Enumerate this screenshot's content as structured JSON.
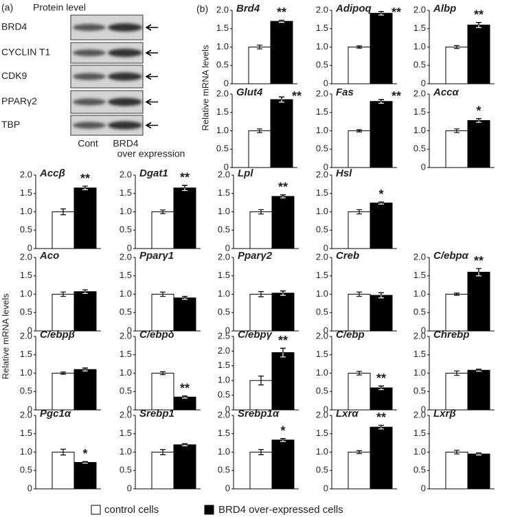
{
  "panel_a": {
    "label": "(a)",
    "title": "Protein level",
    "rows": [
      "BRD4",
      "CYCLIN T1",
      "CDK9",
      "PPARγ2",
      "TBP"
    ],
    "lanes": [
      [
        "Cont"
      ],
      [
        "BRD4",
        "over expression"
      ]
    ]
  },
  "panel_b": {
    "label": "(b)",
    "y_label": "Relative mRNA levels"
  },
  "legend": {
    "items": [
      {
        "name": "control cells",
        "color": "#ffffff"
      },
      {
        "name": "BRD4 over-expressed cells",
        "color": "#000000"
      }
    ]
  },
  "chart_data": [
    {
      "type": "bar",
      "title": "Brd4",
      "categories": [
        null,
        null
      ],
      "values": [
        1.0,
        1.7
      ],
      "errors": [
        0.05,
        0.03
      ],
      "annotation": "**",
      "ylim": [
        0,
        2
      ],
      "yticks": [
        0,
        0.5,
        {
          "value": 1,
          "label": "1.0"
        },
        1.5,
        {
          "value": 2,
          "label": "2.0"
        }
      ]
    },
    {
      "type": "bar",
      "title": "Adipoq",
      "categories": [
        null,
        null
      ],
      "values": [
        1.0,
        1.92
      ],
      "errors": [
        0.03,
        0.05
      ],
      "annotation": "**",
      "ylim": [
        0,
        2
      ],
      "yticks": [
        0,
        0.5,
        {
          "value": 1,
          "label": "1.0"
        },
        1.5,
        {
          "value": 2,
          "label": "2.0"
        }
      ]
    },
    {
      "type": "bar",
      "title": "Albp",
      "categories": [
        null,
        null
      ],
      "values": [
        1.0,
        1.6
      ],
      "errors": [
        0.04,
        0.07
      ],
      "annotation": "**",
      "ylim": [
        0,
        2
      ],
      "yticks": [
        0,
        0.5,
        {
          "value": 1,
          "label": "1.0"
        },
        1.5,
        {
          "value": 2,
          "label": "2.0"
        }
      ]
    },
    {
      "type": "bar",
      "title": "Glut4",
      "categories": [
        null,
        null
      ],
      "values": [
        1.0,
        1.85
      ],
      "errors": [
        0.05,
        0.07
      ],
      "annotation": "**",
      "ylim": [
        0,
        2
      ],
      "yticks": [
        0,
        0.5,
        {
          "value": 1,
          "label": "1.0"
        },
        1.5,
        {
          "value": 2,
          "label": "2.0"
        }
      ]
    },
    {
      "type": "bar",
      "title": "Fas",
      "categories": [
        null,
        null
      ],
      "values": [
        1.0,
        1.8
      ],
      "errors": [
        0.03,
        0.05
      ],
      "annotation": "**",
      "ylim": [
        0,
        2
      ],
      "yticks": [
        0,
        0.5,
        {
          "value": 1,
          "label": "1.0"
        },
        1.5,
        {
          "value": 2,
          "label": "2.0"
        }
      ]
    },
    {
      "type": "bar",
      "title": "Accα",
      "categories": [
        null,
        null
      ],
      "values": [
        1.0,
        1.28
      ],
      "errors": [
        0.05,
        0.05
      ],
      "annotation": "*",
      "ylim": [
        0,
        2
      ],
      "yticks": [
        0,
        0.5,
        {
          "value": 1,
          "label": "1.0"
        },
        1.5,
        {
          "value": 2,
          "label": "2.0"
        }
      ]
    },
    {
      "type": "bar",
      "title": "Accβ",
      "categories": [
        null,
        null
      ],
      "values": [
        1.0,
        1.65
      ],
      "errors": [
        0.08,
        0.05
      ],
      "annotation": "**",
      "ylim": [
        0,
        2
      ],
      "yticks": [
        0,
        0.5,
        {
          "value": 1,
          "label": "1.0"
        },
        1.5,
        {
          "value": 2,
          "label": "2.0"
        }
      ]
    },
    {
      "type": "bar",
      "title": "Dgat1",
      "categories": [
        null,
        null
      ],
      "values": [
        1.0,
        1.65
      ],
      "errors": [
        0.05,
        0.07
      ],
      "annotation": "**",
      "ylim": [
        0,
        2
      ],
      "yticks": [
        0,
        0.5,
        {
          "value": 1,
          "label": "1.0"
        },
        1.5,
        {
          "value": 2,
          "label": "2.0"
        }
      ]
    },
    {
      "type": "bar",
      "title": "Lpl",
      "categories": [
        null,
        null
      ],
      "values": [
        1.0,
        1.42
      ],
      "errors": [
        0.06,
        0.04
      ],
      "annotation": "**",
      "ylim": [
        0,
        2
      ],
      "yticks": [
        0,
        0.5,
        {
          "value": 1,
          "label": "1.0"
        },
        1.5,
        {
          "value": 2,
          "label": "2.0"
        }
      ]
    },
    {
      "type": "bar",
      "title": "Hsl",
      "categories": [
        null,
        null
      ],
      "values": [
        1.0,
        1.24
      ],
      "errors": [
        0.06,
        0.03
      ],
      "annotation": "*",
      "ylim": [
        0,
        2
      ],
      "yticks": [
        0,
        0.5,
        {
          "value": 1,
          "label": "1.0"
        },
        1.5,
        {
          "value": 2,
          "label": "2.0"
        }
      ]
    },
    {
      "type": "bar",
      "title": "Aco",
      "categories": [
        null,
        null
      ],
      "values": [
        1.0,
        1.07
      ],
      "errors": [
        0.06,
        0.05
      ],
      "ylim": [
        0,
        2
      ],
      "yticks": [
        0,
        0.5,
        {
          "value": 1,
          "label": "1.0"
        },
        1.5,
        {
          "value": 2,
          "label": "2.0"
        }
      ]
    },
    {
      "type": "bar",
      "title": "Pparγ1",
      "categories": [
        null,
        null
      ],
      "values": [
        1.0,
        0.9
      ],
      "errors": [
        0.06,
        0.04
      ],
      "ylim": [
        0,
        2
      ],
      "yticks": [
        0,
        0.5,
        {
          "value": 1,
          "label": "1.0"
        },
        1.5,
        {
          "value": 2,
          "label": "2.0"
        }
      ]
    },
    {
      "type": "bar",
      "title": "Pparγ2",
      "categories": [
        null,
        null
      ],
      "values": [
        1.0,
        1.03
      ],
      "errors": [
        0.07,
        0.06
      ],
      "ylim": [
        0,
        2
      ],
      "yticks": [
        0,
        0.5,
        {
          "value": 1,
          "label": "1.0"
        },
        1.5,
        {
          "value": 2,
          "label": "2.0"
        }
      ]
    },
    {
      "type": "bar",
      "title": "Creb",
      "categories": [
        null,
        null
      ],
      "values": [
        1.0,
        0.97
      ],
      "errors": [
        0.06,
        0.07
      ],
      "ylim": [
        0,
        2
      ],
      "yticks": [
        0,
        0.5,
        {
          "value": 1,
          "label": "1.0"
        },
        1.5,
        {
          "value": 2,
          "label": "2.0"
        }
      ]
    },
    {
      "type": "bar",
      "title": "C/ebpα",
      "categories": [
        null,
        null
      ],
      "values": [
        1.0,
        1.6
      ],
      "errors": [
        0.03,
        0.1
      ],
      "annotation": "**",
      "ylim": [
        0,
        2
      ],
      "yticks": [
        0,
        0.5,
        {
          "value": 1,
          "label": "1.0"
        },
        1.5,
        {
          "value": 2,
          "label": "2.0"
        }
      ]
    },
    {
      "type": "bar",
      "title": "C/ebpβ",
      "categories": [
        null,
        null
      ],
      "values": [
        1.0,
        1.1
      ],
      "errors": [
        0.03,
        0.04
      ],
      "ylim": [
        0,
        2
      ],
      "yticks": [
        0,
        0.5,
        {
          "value": 1,
          "label": "1.0"
        },
        1.5,
        {
          "value": 2,
          "label": "2.0"
        }
      ]
    },
    {
      "type": "bar",
      "title": "C/ebpδ",
      "categories": [
        null,
        null
      ],
      "values": [
        1.0,
        0.35
      ],
      "errors": [
        0.04,
        0.03
      ],
      "annotation": "**",
      "ylim": [
        0,
        2
      ],
      "yticks": [
        0,
        0.5,
        {
          "value": 1,
          "label": "1.0"
        },
        1.5,
        {
          "value": 2,
          "label": "2.0"
        }
      ]
    },
    {
      "type": "bar",
      "title": "C/ebpγ",
      "categories": [
        null,
        null
      ],
      "values": [
        1.0,
        1.95
      ],
      "errors": [
        0.15,
        0.15
      ],
      "annotation": "**",
      "ylim": [
        0,
        2.5
      ],
      "yticks": [
        0,
        0.5,
        {
          "value": 1,
          "label": "1.0"
        },
        1.5,
        {
          "value": 2,
          "label": "2.0"
        },
        2.5
      ]
    },
    {
      "type": "bar",
      "title": "C/ebp",
      "categories": [
        null,
        null
      ],
      "values": [
        1.0,
        0.6
      ],
      "errors": [
        0.05,
        0.05
      ],
      "annotation": "**",
      "ylim": [
        0,
        2
      ],
      "yticks": [
        0,
        0.5,
        {
          "value": 1,
          "label": "1.0"
        },
        1.5,
        {
          "value": 2,
          "label": "2.0"
        }
      ]
    },
    {
      "type": "bar",
      "title": "Chrebp",
      "categories": [
        null,
        null
      ],
      "values": [
        1.0,
        1.08
      ],
      "errors": [
        0.06,
        0.03
      ],
      "ylim": [
        0,
        2
      ],
      "yticks": [
        0,
        0.5,
        {
          "value": 1,
          "label": "1.0"
        },
        1.5,
        {
          "value": 2,
          "label": "2.0"
        }
      ]
    },
    {
      "type": "bar",
      "title": "Pgc1α",
      "categories": [
        null,
        null
      ],
      "values": [
        1.0,
        0.72
      ],
      "errors": [
        0.08,
        0.02
      ],
      "annotation": "*",
      "ylim": [
        0,
        2
      ],
      "yticks": [
        0,
        0.5,
        {
          "value": 1,
          "label": "1.0"
        },
        1.5,
        {
          "value": 2,
          "label": "2.0"
        }
      ]
    },
    {
      "type": "bar",
      "title": "Srebp1",
      "categories": [
        null,
        null
      ],
      "values": [
        1.0,
        1.2
      ],
      "errors": [
        0.07,
        0.03
      ],
      "ylim": [
        0,
        2
      ],
      "yticks": [
        0,
        0.5,
        {
          "value": 1,
          "label": "1.0"
        },
        1.5,
        {
          "value": 2,
          "label": "2.0"
        }
      ]
    },
    {
      "type": "bar",
      "title": "Srebp1α",
      "categories": [
        null,
        null
      ],
      "values": [
        1.0,
        1.33
      ],
      "errors": [
        0.07,
        0.04
      ],
      "annotation": "*",
      "ylim": [
        0,
        2
      ],
      "yticks": [
        0,
        0.5,
        {
          "value": 1,
          "label": "1.0"
        },
        1.5,
        {
          "value": 2,
          "label": "2.0"
        }
      ]
    },
    {
      "type": "bar",
      "title": "Lxrα",
      "categories": [
        null,
        null
      ],
      "values": [
        1.0,
        1.68
      ],
      "errors": [
        0.04,
        0.05
      ],
      "annotation": "**",
      "ylim": [
        0,
        2
      ],
      "yticks": [
        0,
        0.5,
        {
          "value": 1,
          "label": "1.0"
        },
        1.5,
        {
          "value": 2,
          "label": "2.0"
        }
      ]
    },
    {
      "type": "bar",
      "title": "Lxrβ",
      "categories": [
        null,
        null
      ],
      "values": [
        1.0,
        0.95
      ],
      "errors": [
        0.05,
        0.03
      ],
      "ylim": [
        0,
        2
      ],
      "yticks": [
        0,
        0.5,
        {
          "value": 1,
          "label": "1.0"
        },
        1.5,
        {
          "value": 2,
          "label": "2.0"
        }
      ]
    }
  ]
}
